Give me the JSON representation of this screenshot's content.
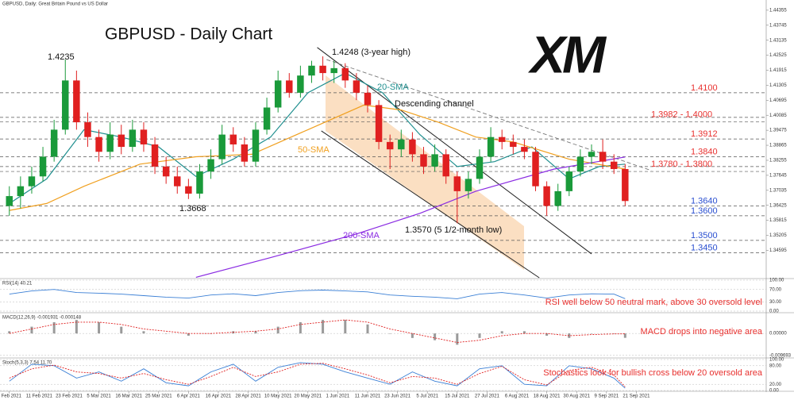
{
  "chart_data": {
    "type": "candlestick",
    "header": "GBPUSD, Daily: Great Britain Pound vs US Dollar",
    "title": "GBPUSD - Daily Chart",
    "logo": "XM",
    "xlim": [
      -2.5,
      202.8
    ],
    "ylim": [
      1.3348,
      1.4477
    ],
    "xticks": [
      {
        "value": 0,
        "label": "1 Feb 2021"
      },
      {
        "value": 8,
        "label": "11 Feb 2021"
      },
      {
        "value": 16,
        "label": "23 Feb 2021"
      },
      {
        "value": 24,
        "label": "5 Mar 2021"
      },
      {
        "value": 32,
        "label": "16 Mar 2021"
      },
      {
        "value": 40,
        "label": "25 Mar 2021"
      },
      {
        "value": 48,
        "label": "6 Apr 2021"
      },
      {
        "value": 56,
        "label": "16 Apr 2021"
      },
      {
        "value": 64,
        "label": "28 Apr 2021"
      },
      {
        "value": 72,
        "label": "10 May 2021"
      },
      {
        "value": 80,
        "label": "20 May 2021"
      },
      {
        "value": 88,
        "label": "1 Jun 2021"
      },
      {
        "value": 96,
        "label": "11 Jun 2021"
      },
      {
        "value": 104,
        "label": "23 Jun 2021"
      },
      {
        "value": 112,
        "label": "5 Jul 2021"
      },
      {
        "value": 120,
        "label": "15 Jul 2021"
      },
      {
        "value": 128,
        "label": "27 Jul 2021"
      },
      {
        "value": 136,
        "label": "6 Aug 2021"
      },
      {
        "value": 144,
        "label": "18 Aug 2021"
      },
      {
        "value": 152,
        "label": "30 Aug 2021"
      },
      {
        "value": 160,
        "label": "9 Sep 2021"
      },
      {
        "value": 168,
        "label": "21 Sep 2021"
      }
    ],
    "yticks": [
      1.44355,
      1.43745,
      1.43135,
      1.42525,
      1.41915,
      1.41305,
      1.40695,
      1.40085,
      1.39475,
      1.38865,
      1.38255,
      1.37645,
      1.37035,
      1.36425,
      1.35815,
      1.35205,
      1.34595
    ],
    "up_color": "#1a9a3a",
    "down_color": "#e02020",
    "x": [
      0,
      3,
      6,
      9,
      12,
      15,
      18,
      21,
      24,
      27,
      30,
      33,
      36,
      39,
      42,
      45,
      48,
      51,
      54,
      57,
      60,
      63,
      66,
      69,
      72,
      75,
      78,
      81,
      84,
      87,
      90,
      93,
      96,
      99,
      102,
      105,
      108,
      111,
      114,
      117,
      120,
      123,
      126,
      129,
      132,
      135,
      138,
      141,
      144,
      147,
      150,
      153,
      156,
      159,
      162,
      165
    ],
    "candles": [
      [
        1.364,
        1.372,
        1.36,
        1.368
      ],
      [
        1.368,
        1.376,
        1.363,
        1.372
      ],
      [
        1.372,
        1.38,
        1.369,
        1.376
      ],
      [
        1.376,
        1.388,
        1.374,
        1.384
      ],
      [
        1.384,
        1.399,
        1.382,
        1.395
      ],
      [
        1.395,
        1.4235,
        1.393,
        1.415
      ],
      [
        1.415,
        1.419,
        1.395,
        1.398
      ],
      [
        1.398,
        1.402,
        1.388,
        1.392
      ],
      [
        1.392,
        1.395,
        1.382,
        1.386
      ],
      [
        1.386,
        1.398,
        1.383,
        1.393
      ],
      [
        1.393,
        1.397,
        1.385,
        1.388
      ],
      [
        1.388,
        1.399,
        1.386,
        1.395
      ],
      [
        1.395,
        1.398,
        1.386,
        1.389
      ],
      [
        1.389,
        1.392,
        1.377,
        1.38
      ],
      [
        1.38,
        1.384,
        1.373,
        1.376
      ],
      [
        1.376,
        1.38,
        1.369,
        1.372
      ],
      [
        1.372,
        1.375,
        1.3668,
        1.369
      ],
      [
        1.369,
        1.381,
        1.367,
        1.378
      ],
      [
        1.378,
        1.387,
        1.375,
        1.383
      ],
      [
        1.383,
        1.397,
        1.381,
        1.393
      ],
      [
        1.393,
        1.396,
        1.386,
        1.389
      ],
      [
        1.389,
        1.392,
        1.38,
        1.382
      ],
      [
        1.382,
        1.398,
        1.38,
        1.395
      ],
      [
        1.395,
        1.408,
        1.393,
        1.404
      ],
      [
        1.404,
        1.419,
        1.402,
        1.415
      ],
      [
        1.415,
        1.418,
        1.408,
        1.41
      ],
      [
        1.41,
        1.421,
        1.408,
        1.417
      ],
      [
        1.417,
        1.423,
        1.414,
        1.421
      ],
      [
        1.421,
        1.4248,
        1.415,
        1.418
      ],
      [
        1.418,
        1.423,
        1.414,
        1.42
      ],
      [
        1.42,
        1.422,
        1.412,
        1.415
      ],
      [
        1.415,
        1.418,
        1.407,
        1.41
      ],
      [
        1.41,
        1.413,
        1.402,
        1.405
      ],
      [
        1.405,
        1.407,
        1.387,
        1.39
      ],
      [
        1.39,
        1.393,
        1.379,
        1.387
      ],
      [
        1.387,
        1.395,
        1.384,
        1.391
      ],
      [
        1.391,
        1.394,
        1.382,
        1.385
      ],
      [
        1.385,
        1.388,
        1.377,
        1.38
      ],
      [
        1.38,
        1.389,
        1.378,
        1.385
      ],
      [
        1.385,
        1.387,
        1.373,
        1.376
      ],
      [
        1.376,
        1.378,
        1.357,
        1.37
      ],
      [
        1.37,
        1.378,
        1.367,
        1.375
      ],
      [
        1.375,
        1.387,
        1.373,
        1.384
      ],
      [
        1.384,
        1.396,
        1.382,
        1.392
      ],
      [
        1.392,
        1.395,
        1.387,
        1.39
      ],
      [
        1.39,
        1.393,
        1.385,
        1.388
      ],
      [
        1.388,
        1.391,
        1.383,
        1.386
      ],
      [
        1.386,
        1.388,
        1.37,
        1.372
      ],
      [
        1.372,
        1.374,
        1.36,
        1.364
      ],
      [
        1.364,
        1.373,
        1.362,
        1.37
      ],
      [
        1.37,
        1.38,
        1.368,
        1.378
      ],
      [
        1.378,
        1.387,
        1.376,
        1.384
      ],
      [
        1.384,
        1.389,
        1.381,
        1.386
      ],
      [
        1.386,
        1.391,
        1.379,
        1.382
      ],
      [
        1.382,
        1.385,
        1.377,
        1.379
      ],
      [
        1.379,
        1.381,
        1.364,
        1.366
      ]
    ],
    "series": [
      {
        "name": "20-SMA",
        "color": "#1f8f8f",
        "x": [
          0,
          10,
          20,
          30,
          40,
          50,
          60,
          70,
          80,
          90,
          100,
          110,
          120,
          130,
          140,
          150,
          158,
          165
        ],
        "values": [
          1.365,
          1.375,
          1.395,
          1.392,
          1.388,
          1.376,
          1.383,
          1.392,
          1.41,
          1.418,
          1.41,
          1.393,
          1.38,
          1.382,
          1.388,
          1.375,
          1.38,
          1.381
        ]
      },
      {
        "name": "50-SMA",
        "color": "#f0a020",
        "x": [
          0,
          10,
          20,
          35,
          50,
          65,
          80,
          95,
          105,
          115,
          125,
          135,
          150,
          165
        ],
        "values": [
          1.3622,
          1.365,
          1.372,
          1.381,
          1.384,
          1.385,
          1.395,
          1.405,
          1.403,
          1.398,
          1.392,
          1.39,
          1.383,
          1.379
        ]
      },
      {
        "name": "200-SMA",
        "color": "#8a2be2",
        "x": [
          50,
          70,
          93,
          110,
          125,
          146,
          165
        ],
        "values": [
          1.335,
          1.343,
          1.3526,
          1.361,
          1.37,
          1.379,
          1.3839
        ]
      }
    ],
    "levels": [
      {
        "label": "1.4100",
        "values": [
          1.41
        ],
        "color": "#e8312f"
      },
      {
        "label": "1.3982 - 1.4000",
        "values": [
          1.3982,
          1.4
        ],
        "color": "#e8312f"
      },
      {
        "label": "1.3912",
        "values": [
          1.3912
        ],
        "color": "#e8312f"
      },
      {
        "label": "1.3840",
        "values": [
          1.384
        ],
        "color": "#e8312f"
      },
      {
        "label": "1.3780 - 1.3800",
        "values": [
          1.378,
          1.38
        ],
        "color": "#e8312f"
      },
      {
        "label": "1.3640",
        "values": [
          1.364
        ],
        "color": "#2a4fd0"
      },
      {
        "label": "1.3600",
        "values": [
          1.36
        ],
        "color": "#2a4fd0"
      },
      {
        "label": "1.3500",
        "values": [
          1.35
        ],
        "color": "#2a4fd0"
      },
      {
        "label": "1.3450",
        "values": [
          1.345
        ],
        "color": "#2a4fd0"
      }
    ],
    "lines": [
      {
        "x": [
          82.5,
          156
        ],
        "y": [
          1.4284,
          1.3445
        ],
        "style": "solid"
      },
      {
        "x": [
          83.6,
          142
        ],
        "y": [
          1.3945,
          1.3348
        ],
        "style": "solid"
      },
      {
        "x": [
          85,
          172
        ],
        "y": [
          1.4235,
          1.3784
        ],
        "style": "dashed"
      }
    ],
    "annotations": [
      {
        "text": "1.4235",
        "color": "#111"
      },
      {
        "text": "1.4248 (3-year high)",
        "color": "#111"
      },
      {
        "text": "20-SMA",
        "color": "#1f8f8f"
      },
      {
        "text": "Descending channel",
        "color": "#111"
      },
      {
        "text": "50-SMA",
        "color": "#f0a020"
      },
      {
        "text": "1.3668",
        "color": "#111"
      },
      {
        "text": "1.3570 (5 1/2-month low)",
        "color": "#111"
      },
      {
        "text": "200-SMA",
        "color": "#8a2be2"
      }
    ],
    "ind_x": [
      0,
      6,
      12,
      18,
      24,
      30,
      36,
      42,
      48,
      54,
      60,
      66,
      72,
      78,
      84,
      90,
      96,
      102,
      108,
      114,
      120,
      126,
      132,
      138,
      144,
      150,
      156,
      162,
      165
    ],
    "rsi": {
      "type": "line",
      "label": "RSI(14) 40.21",
      "note": "RSI well below 50 neutral mark, above 30 oversold level",
      "ylim": [
        0,
        100
      ],
      "yticks": [
        {
          "value": 100,
          "label": "100.00"
        },
        {
          "value": 70,
          "label": "70.00"
        },
        {
          "value": 30,
          "label": "30.00"
        },
        {
          "value": 0,
          "label": "0.00"
        }
      ],
      "series": [
        {
          "name": "RSI",
          "color": "#3a7fd5",
          "values": [
            55,
            65,
            70,
            60,
            58,
            55,
            50,
            45,
            42,
            52,
            56,
            50,
            60,
            66,
            68,
            65,
            62,
            52,
            48,
            45,
            40,
            55,
            60,
            52,
            42,
            52,
            56,
            55,
            40.21
          ]
        }
      ]
    },
    "macd": {
      "type": "bar",
      "label": "MACD(12,26,9) -0.001931 -0.000148",
      "note": "MACD drops into negative area",
      "ylim": [
        -0.0105,
        0.0085
      ],
      "yticks": [
        {
          "value": 0,
          "label": "0.00000"
        },
        {
          "value": -0.009693,
          "label": "-0.009693"
        }
      ],
      "values": [
        0.001,
        0.003,
        0.005,
        0.006,
        0.005,
        0.003,
        0.001,
        0.0,
        -0.001,
        0.0,
        0.001,
        0.001,
        0.003,
        0.005,
        0.006,
        0.006,
        0.004,
        0.0,
        -0.002,
        -0.003,
        -0.005,
        -0.002,
        0.001,
        0.001,
        -0.001,
        -0.002,
        0.0,
        0.0,
        -0.001931
      ],
      "color": "#9a9a9a",
      "series": [
        {
          "name": "Signal",
          "color": "#e02020",
          "values": [
            0.0,
            0.002,
            0.004,
            0.005,
            0.005,
            0.004,
            0.002,
            0.001,
            0.0,
            0.0,
            0.0005,
            0.001,
            0.002,
            0.004,
            0.005,
            0.006,
            0.005,
            0.002,
            0.0,
            -0.002,
            -0.004,
            -0.003,
            -0.001,
            0.0,
            0.0,
            -0.001,
            -0.0005,
            -0.0002,
            -0.000148
          ]
        }
      ]
    },
    "stoch": {
      "type": "line",
      "label": "Stoch(5,3,3) 7.54 11.70",
      "note": "Stochastics look for bullish cross below 20 oversold area",
      "ylim": [
        0,
        100
      ],
      "yticks": [
        {
          "value": 100,
          "label": "100.00"
        },
        {
          "value": 80,
          "label": "80.00"
        },
        {
          "value": 20,
          "label": "20.00"
        },
        {
          "value": 0,
          "label": "0.00"
        }
      ],
      "series": [
        {
          "name": "%K",
          "color": "#3a7fd5",
          "values": [
            30,
            85,
            80,
            40,
            60,
            30,
            70,
            25,
            15,
            60,
            85,
            30,
            75,
            90,
            85,
            60,
            40,
            20,
            60,
            30,
            15,
            70,
            80,
            20,
            15,
            80,
            70,
            40,
            7.54
          ]
        },
        {
          "name": "%D",
          "color": "#e02020",
          "values": [
            40,
            70,
            82,
            60,
            55,
            40,
            55,
            35,
            20,
            45,
            75,
            45,
            60,
            85,
            88,
            70,
            50,
            25,
            45,
            40,
            20,
            55,
            78,
            35,
            18,
            65,
            75,
            50,
            11.7
          ]
        }
      ]
    }
  }
}
